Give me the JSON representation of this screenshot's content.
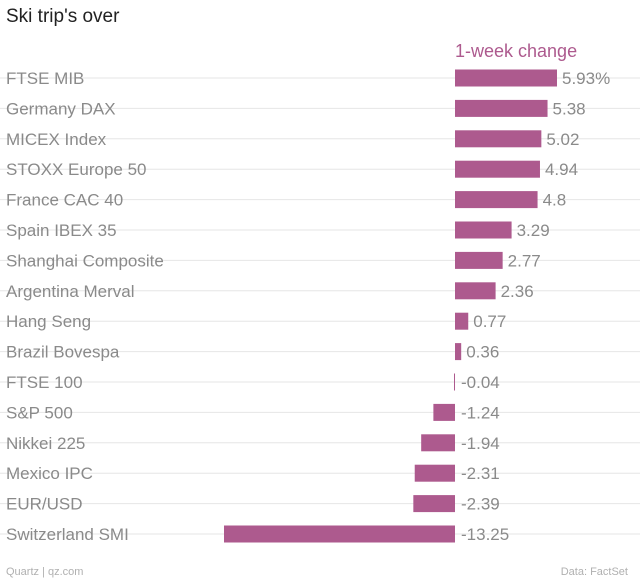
{
  "title": "Ski trip's over",
  "footer": {
    "source_left": "Quartz | qz.com",
    "source_right": "Data: FactSet"
  },
  "colors": {
    "bar": "#ad5a8e",
    "series_label": "#ad5a8e",
    "gridline": "#e6e6e6",
    "category_text": "#8a8a8a",
    "value_text": "#8a8a8a"
  },
  "chart_data": {
    "type": "bar",
    "orientation": "horizontal",
    "title": "Ski trip's over",
    "series": [
      {
        "name": "1-week change",
        "values": [
          5.93,
          5.38,
          5.02,
          4.94,
          4.8,
          3.29,
          2.77,
          2.36,
          0.77,
          0.36,
          -0.04,
          -1.24,
          -1.94,
          -2.31,
          -2.39,
          -13.25
        ],
        "value_labels": [
          "5.93%",
          "5.38",
          "5.02",
          "4.94",
          "4.8",
          "3.29",
          "2.77",
          "2.36",
          "0.77",
          "0.36",
          "-0.04",
          "-1.24",
          "-1.94",
          "-2.31",
          "-2.39",
          "-13.25"
        ]
      }
    ],
    "categories": [
      "FTSE MIB",
      "Germany DAX",
      "MICEX Index",
      "STOXX Europe 50",
      "France CAC 40",
      "Spain IBEX 35",
      "Shanghai Composite",
      "Argentina Merval",
      "Hang Seng",
      "Brazil Bovespa",
      "FTSE 100",
      "S&P 500",
      "Nikkei 225",
      "Mexico IPC",
      "EUR/USD",
      "Switzerland SMI"
    ],
    "xlim": [
      -13.25,
      5.93
    ],
    "xlabel": "",
    "ylabel": "",
    "grid": true,
    "legend": "top"
  }
}
